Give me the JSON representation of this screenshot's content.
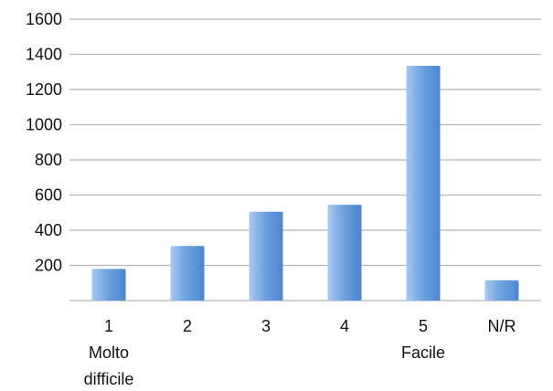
{
  "chart_data": {
    "type": "bar",
    "title": "",
    "xlabel": "",
    "ylabel": "",
    "categories": [
      "1",
      "2",
      "3",
      "4",
      "5",
      "N/R"
    ],
    "category_sublabels": [
      "Molto difficile",
      "",
      "",
      "",
      "Facile",
      ""
    ],
    "values": [
      180,
      310,
      505,
      545,
      1335,
      115
    ],
    "ylim": [
      0,
      1600
    ],
    "yticks": [
      200,
      400,
      600,
      800,
      1000,
      1200,
      1400,
      1600
    ],
    "grid": true,
    "legend": "none",
    "bar_color": "#5b93d6",
    "bar_color_light": "#a9c8ee"
  }
}
